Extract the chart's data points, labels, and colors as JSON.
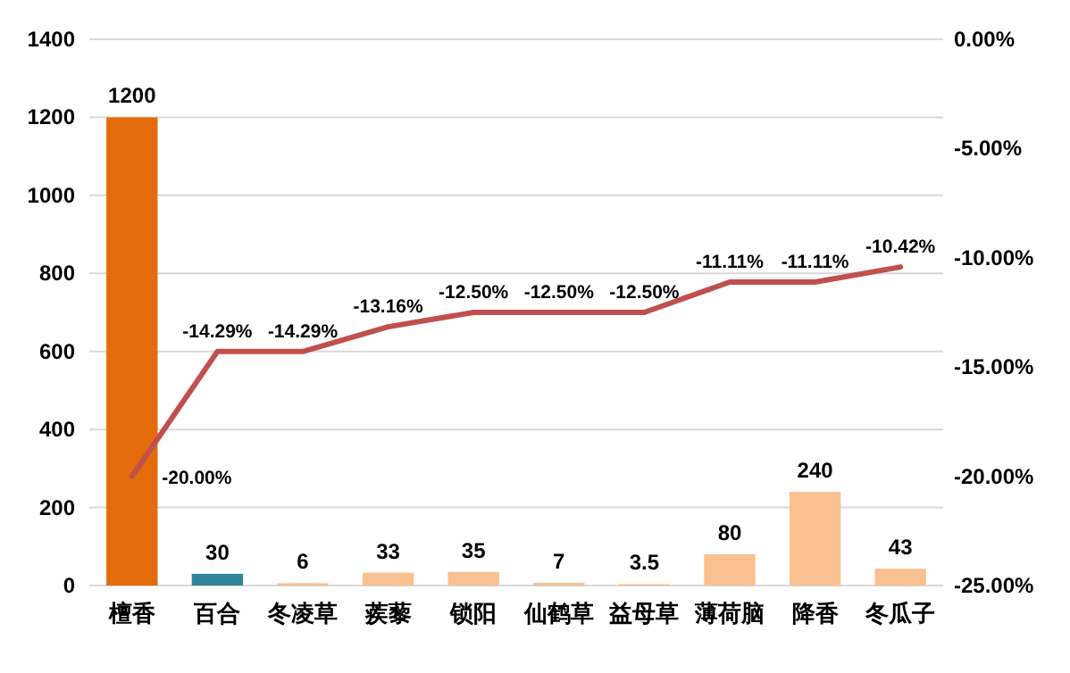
{
  "chart_data": {
    "type": "bar",
    "categories": [
      "檀香",
      "百合",
      "冬凌草",
      "蒺藜",
      "锁阳",
      "仙鹤草",
      "益母草",
      "薄荷脑",
      "降香",
      "冬瓜子"
    ],
    "series": [
      {
        "colors": [
          "#e46c0a",
          "#31849b",
          "#fac090",
          "#fac090",
          "#fac090",
          "#fac090",
          "#fac090",
          "#fac090",
          "#fac090",
          "#fac090"
        ],
        "values": [
          1200,
          30,
          6,
          33,
          35,
          7,
          3.5,
          80,
          240,
          43
        ],
        "value_labels": [
          "1200",
          "30",
          "6",
          "33",
          "35",
          "7",
          "3.5",
          "80",
          "240",
          "43"
        ]
      },
      {
        "type": "line",
        "axis": "y2",
        "color": "#c0504d",
        "values": [
          -20.0,
          -14.29,
          -14.29,
          -13.16,
          -12.5,
          -12.5,
          -12.5,
          -11.11,
          -11.11,
          -10.42
        ],
        "value_labels": [
          "-20.00%",
          "-14.29%",
          "-14.29%",
          "-13.16%",
          "-12.50%",
          "-12.50%",
          "-12.50%",
          "-11.11%",
          "-11.11%",
          "-10.42%"
        ]
      }
    ],
    "ylim": [
      0,
      1400
    ],
    "yticks": [
      0,
      200,
      400,
      600,
      800,
      1000,
      1200,
      1400
    ],
    "y2lim": [
      -25,
      0
    ],
    "y2ticks": [
      {
        "value": -25,
        "label": "-25.00%"
      },
      {
        "value": -20,
        "label": "-20.00%"
      },
      {
        "value": -15,
        "label": "-15.00%"
      },
      {
        "value": -10,
        "label": "-10.00%"
      },
      {
        "value": -5,
        "label": "-5.00%"
      },
      {
        "value": 0,
        "label": "0.00%"
      }
    ],
    "grid": "y",
    "marker": "none"
  }
}
